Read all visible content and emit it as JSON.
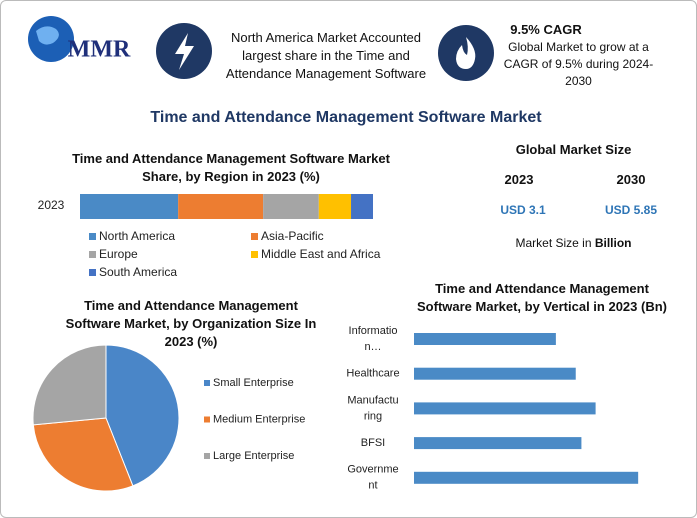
{
  "header": {
    "logo": "MMR",
    "info_1": "North America Market Accounted largest share in the Time and Attendance Management Software",
    "info_2_title": "9.5% CAGR",
    "info_2_text": "Global Market to grow at a CAGR of 9.5% during 2024-2030"
  },
  "title": "Time and Attendance Management Software Market",
  "market_size": {
    "title": "Global Market Size",
    "years": [
      "2023",
      "2030"
    ],
    "values": [
      "USD 3.1",
      "USD 5.85"
    ],
    "note": "Market Size in ",
    "note_unit": "Billion"
  },
  "chart_data": [
    {
      "type": "stacked_bar",
      "title": "Time and Attendance Management Software Market Share, by Region in 2023 (%)",
      "categories": [
        "2023"
      ],
      "xlim": [
        0,
        100
      ],
      "series": [
        {
          "name": "North America",
          "color": "#4a8ac6",
          "values": [
            33.5
          ]
        },
        {
          "name": "Asia-Pacific",
          "color": "#ed7d31",
          "values": [
            29
          ]
        },
        {
          "name": "Europe",
          "color": "#a5a5a5",
          "values": [
            19
          ]
        },
        {
          "name": "Middle East and Africa",
          "color": "#ffc000",
          "values": [
            11
          ]
        },
        {
          "name": "South America",
          "color": "#4472c4",
          "values": [
            7.5
          ]
        }
      ]
    },
    {
      "type": "pie",
      "title": "Time and Attendance Management Software Market, by Organization Size In 2023 (%)",
      "categories": [
        "Small Enterprise",
        "Medium Enterprise",
        "Large Enterprise"
      ],
      "values": [
        44,
        29.5,
        26.5
      ],
      "colors": [
        "#4a86c8",
        "#ed7d31",
        "#a5a5a5"
      ]
    },
    {
      "type": "hbar",
      "title": "Time and Attendance Management Software Market, by Vertical in 2023 (Bn)",
      "categories": [
        [
          "Informatio",
          "n…"
        ],
        [
          "Healthcare"
        ],
        [
          "Manufactu",
          "ring"
        ],
        [
          "BFSI"
        ],
        [
          "Governme",
          "nt"
        ]
      ],
      "values": [
        0.5,
        0.57,
        0.64,
        0.59,
        0.79
      ],
      "color": "#4a8ac6",
      "xlim": [
        0,
        0.8
      ]
    }
  ]
}
